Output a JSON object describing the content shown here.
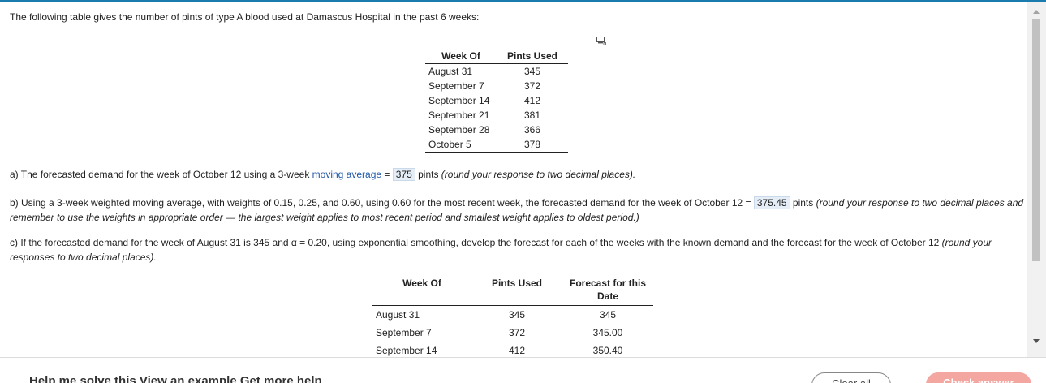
{
  "intro": "The following table gives the number of pints of type A blood used at Damascus Hospital in the past 6 weeks:",
  "table1": {
    "headers": [
      "Week Of",
      "Pints Used"
    ],
    "rows": [
      [
        "August 31",
        "345"
      ],
      [
        "September 7",
        "372"
      ],
      [
        "September 14",
        "412"
      ],
      [
        "September 21",
        "381"
      ],
      [
        "September 28",
        "366"
      ],
      [
        "October 5",
        "378"
      ]
    ]
  },
  "part_a": {
    "text1": "a) The forecasted demand for the week of October 12 using a 3-week ",
    "link": "moving average",
    "text2": " = ",
    "answer": "375",
    "text3": " pints ",
    "hint": "(round your response to two decimal places)."
  },
  "part_b": {
    "text1": "b) Using a 3-week weighted moving average, with weights of 0.15, 0.25, and 0.60, using 0.60 for the most recent week, the forecasted demand for the week of October 12 = ",
    "answer": "375.45",
    "text2": " pints ",
    "hint": "(round your response to two decimal places and remember to use the weights in appropriate order — the largest weight applies to most recent period and smallest weight applies to oldest period.)"
  },
  "part_c": {
    "text1": "c) If the forecasted demand for the week of August 31 is 345 and α = 0.20, using exponential smoothing, develop the forecast for each of the weeks with the known demand and the forecast for the week of October 12 ",
    "hint": "(round your responses to two decimal places)."
  },
  "table2": {
    "headers": [
      "Week Of",
      "Pints Used",
      "Forecast for this Date"
    ],
    "rows": [
      [
        "August 31",
        "345",
        "345"
      ],
      [
        "September 7",
        "372",
        "345.00"
      ],
      [
        "September 14",
        "412",
        "350.40"
      ]
    ]
  },
  "footer": {
    "left_text": "Help me solve this    View an example    Get more help",
    "clear_label": "Clear all",
    "check_label": "Check answer"
  },
  "colors": {
    "accent_bar": "#1a7cae",
    "answer_bg": "#e5eef7",
    "check_button": "#f3a7a0"
  }
}
